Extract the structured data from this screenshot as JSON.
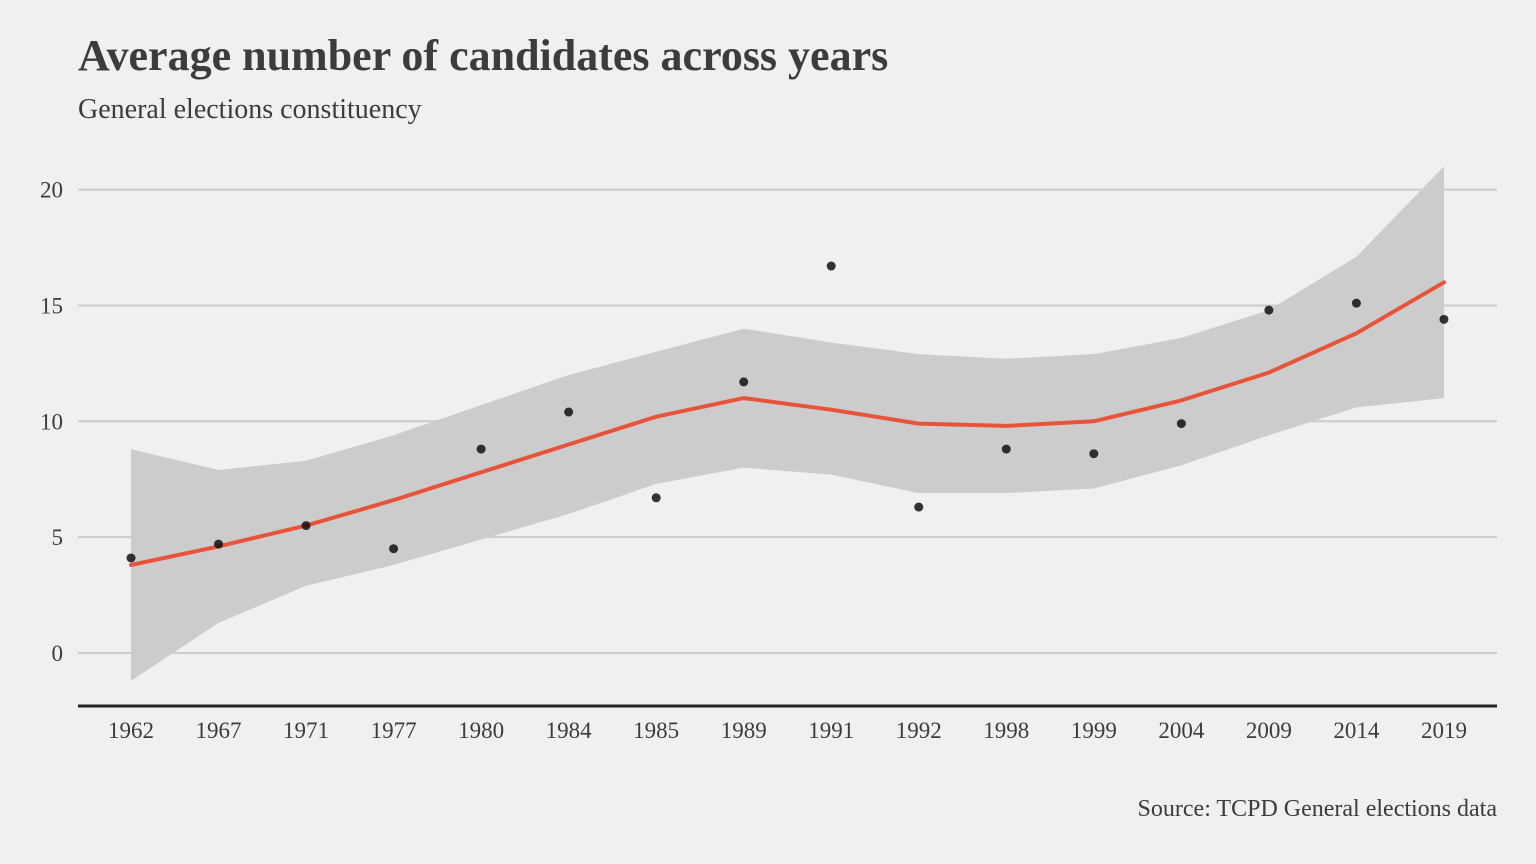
{
  "title": "Average number of candidates across years",
  "subtitle": "General elections constituency",
  "source": "Source: TCPD General elections data",
  "colors": {
    "background": "#f0f0f0",
    "text": "#3c3c3c",
    "grid": "#cbcbcb",
    "ribbon": "#cccccc",
    "trend": "#e8543a",
    "point": "#111111",
    "axis": "#222222"
  },
  "chart_data": {
    "type": "scatter",
    "categories": [
      "1962",
      "1967",
      "1971",
      "1977",
      "1980",
      "1984",
      "1985",
      "1989",
      "1991",
      "1992",
      "1998",
      "1999",
      "2004",
      "2009",
      "2014",
      "2019"
    ],
    "y_ticks": [
      0,
      5,
      10,
      15,
      20
    ],
    "ylim": [
      -2.3,
      21
    ],
    "grid": true,
    "legend": "none",
    "points": [
      4.1,
      4.7,
      5.5,
      4.5,
      8.8,
      10.4,
      6.7,
      11.7,
      16.7,
      6.3,
      8.8,
      8.6,
      9.9,
      14.8,
      15.1,
      14.4
    ],
    "trend": [
      3.8,
      4.6,
      5.5,
      6.6,
      7.8,
      9.0,
      10.2,
      11.0,
      10.5,
      9.9,
      9.8,
      10.0,
      10.9,
      12.1,
      13.8,
      16.0
    ],
    "ribbon_upper": [
      8.8,
      7.9,
      8.3,
      9.4,
      10.7,
      12.0,
      13.0,
      14.0,
      13.4,
      12.9,
      12.7,
      12.9,
      13.6,
      14.8,
      17.1,
      21.0
    ],
    "ribbon_lower": [
      -1.2,
      1.3,
      2.9,
      3.8,
      4.9,
      6.0,
      7.3,
      8.0,
      7.7,
      6.9,
      6.9,
      7.1,
      8.1,
      9.4,
      10.6,
      11.0
    ]
  }
}
